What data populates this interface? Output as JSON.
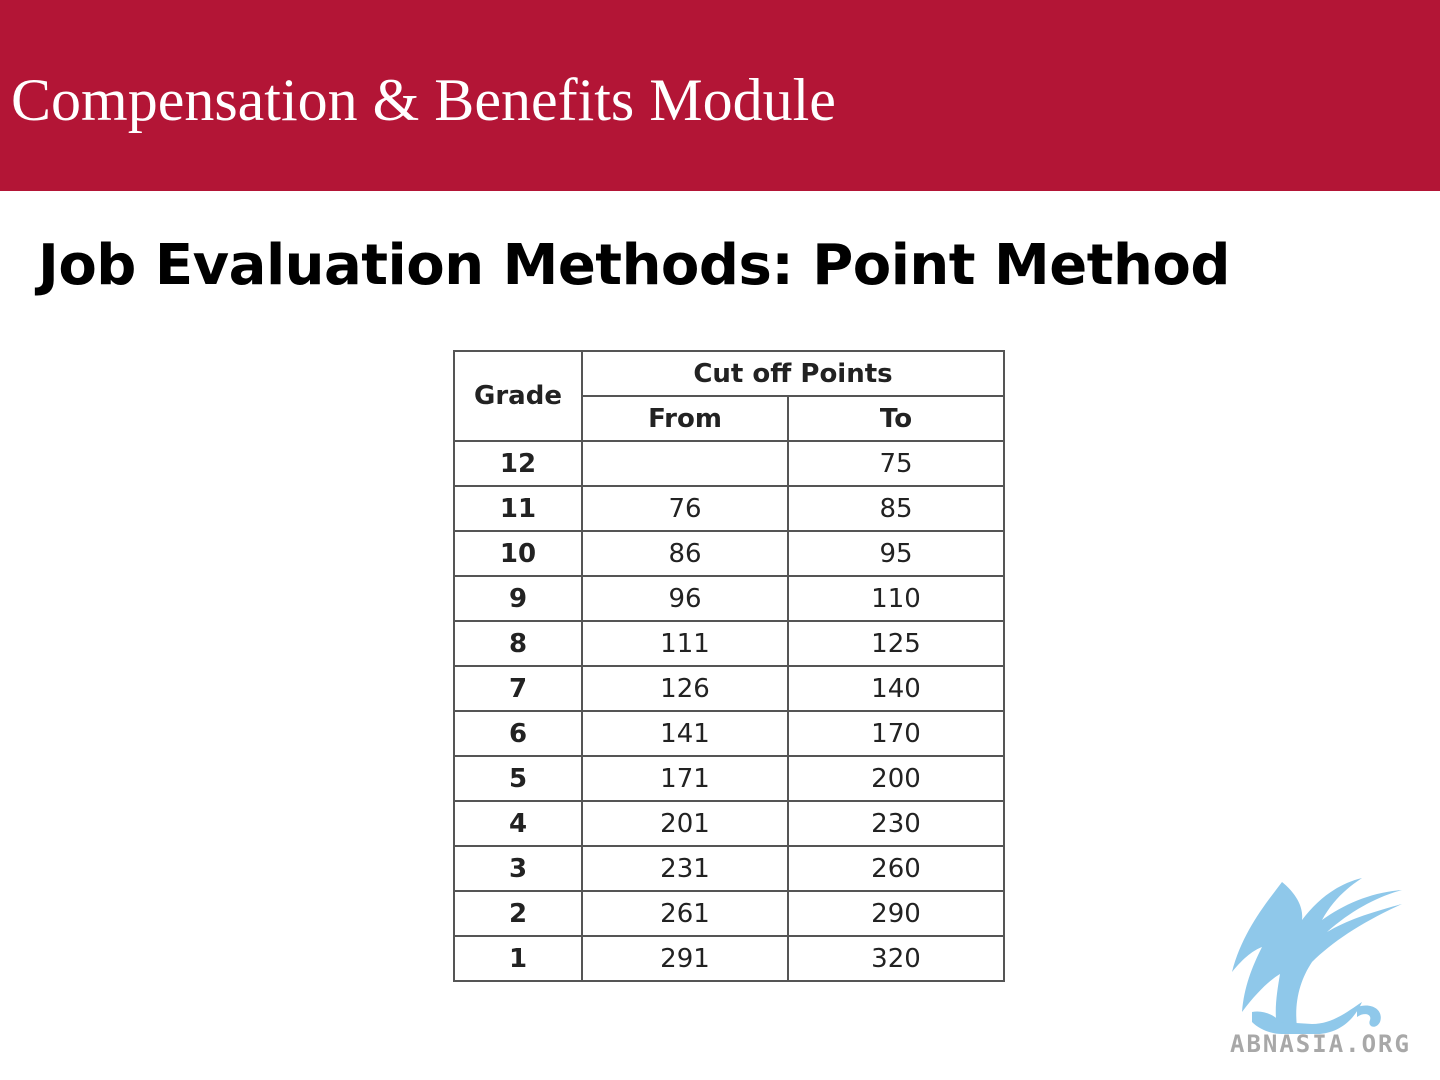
{
  "header": {
    "title": "Compensation & Benefits Module"
  },
  "slide": {
    "title": "Job Evaluation Methods: Point Method"
  },
  "table": {
    "headers": {
      "grade": "Grade",
      "cutoff_group": "Cut off Points",
      "from": "From",
      "to": "To"
    },
    "rows": [
      {
        "grade": "12",
        "from": "",
        "to": "75"
      },
      {
        "grade": "11",
        "from": "76",
        "to": "85"
      },
      {
        "grade": "10",
        "from": "86",
        "to": "95"
      },
      {
        "grade": "9",
        "from": "96",
        "to": "110"
      },
      {
        "grade": "8",
        "from": "111",
        "to": "125"
      },
      {
        "grade": "7",
        "from": "126",
        "to": "140"
      },
      {
        "grade": "6",
        "from": "141",
        "to": "170"
      },
      {
        "grade": "5",
        "from": "171",
        "to": "200"
      },
      {
        "grade": "4",
        "from": "201",
        "to": "230"
      },
      {
        "grade": "3",
        "from": "231",
        "to": "260"
      },
      {
        "grade": "2",
        "from": "261",
        "to": "290"
      },
      {
        "grade": "1",
        "from": "291",
        "to": "320"
      }
    ]
  },
  "watermark": {
    "text": "ABNASIA.ORG",
    "icon": "griffin-logo-icon",
    "color": "#8fc8ea"
  },
  "colors": {
    "header_band": "#b31536"
  }
}
